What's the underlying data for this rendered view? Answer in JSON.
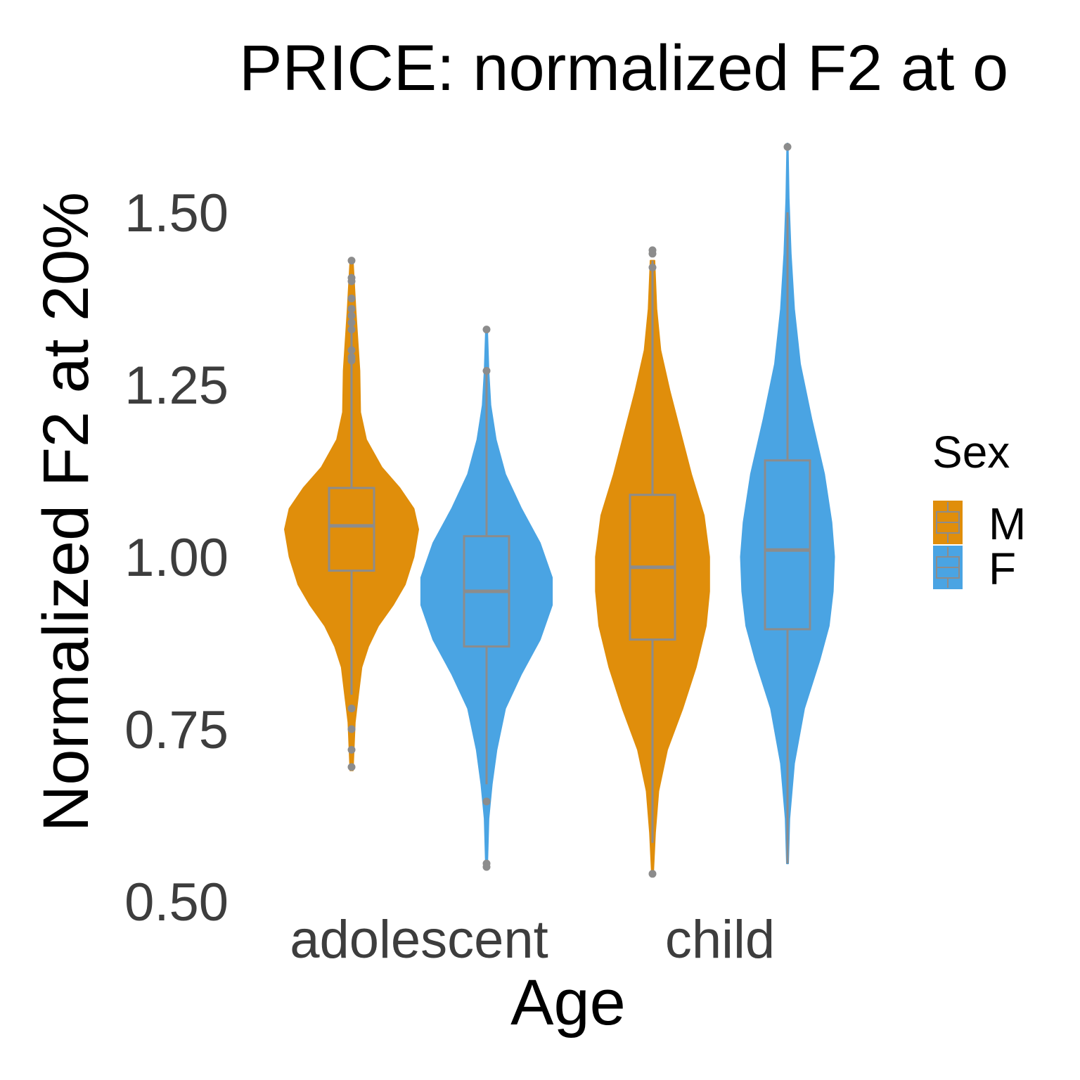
{
  "chart_data": {
    "type": "violin",
    "title": "PRICE: normalized F2 at o",
    "xlabel": "Age",
    "ylabel": "Normalized F2 at 20%",
    "categories": [
      "adolescent",
      "child"
    ],
    "ylim": [
      0.5,
      1.6
    ],
    "yticks": [
      "0.50",
      "0.75",
      "1.00",
      "1.25",
      "1.50"
    ],
    "grid": false,
    "legend": {
      "title": "Sex",
      "position": "right",
      "entries": [
        {
          "label": "M",
          "color": "#E08E0B"
        },
        {
          "label": "F",
          "color": "#4AA4E3"
        }
      ]
    },
    "box_color": "#8C8C8C",
    "groups": [
      {
        "category": "adolescent",
        "sex": "M",
        "color": "#E08E0B",
        "q1": 0.98,
        "median": 1.045,
        "q3": 1.1,
        "whisker_low": 0.8,
        "whisker_high": 1.35,
        "outliers": [
          1.43,
          1.405,
          1.4,
          1.375,
          1.36,
          1.35,
          1.34,
          1.33,
          1.3,
          1.29,
          1.285,
          0.78,
          0.75,
          0.72,
          0.695
        ],
        "density": [
          [
            0.69,
            0.02
          ],
          [
            0.76,
            0.05
          ],
          [
            0.8,
            0.1
          ],
          [
            0.84,
            0.15
          ],
          [
            0.87,
            0.25
          ],
          [
            0.9,
            0.4
          ],
          [
            0.93,
            0.62
          ],
          [
            0.96,
            0.8
          ],
          [
            1.0,
            0.93
          ],
          [
            1.04,
            1.0
          ],
          [
            1.07,
            0.93
          ],
          [
            1.1,
            0.72
          ],
          [
            1.13,
            0.45
          ],
          [
            1.17,
            0.22
          ],
          [
            1.21,
            0.13
          ],
          [
            1.27,
            0.12
          ],
          [
            1.3,
            0.1
          ],
          [
            1.36,
            0.06
          ],
          [
            1.43,
            0.02
          ]
        ]
      },
      {
        "category": "adolescent",
        "sex": "F",
        "color": "#4AA4E3",
        "q1": 0.87,
        "median": 0.95,
        "q3": 1.03,
        "whisker_low": 0.67,
        "whisker_high": 1.27,
        "outliers": [
          1.33,
          1.27,
          0.645,
          0.555,
          0.55
        ],
        "density": [
          [
            0.55,
            0.01
          ],
          [
            0.62,
            0.03
          ],
          [
            0.67,
            0.08
          ],
          [
            0.72,
            0.15
          ],
          [
            0.78,
            0.28
          ],
          [
            0.83,
            0.52
          ],
          [
            0.88,
            0.8
          ],
          [
            0.93,
            0.98
          ],
          [
            0.97,
            0.98
          ],
          [
            1.02,
            0.8
          ],
          [
            1.07,
            0.52
          ],
          [
            1.12,
            0.28
          ],
          [
            1.17,
            0.14
          ],
          [
            1.22,
            0.06
          ],
          [
            1.27,
            0.03
          ],
          [
            1.33,
            0.01
          ]
        ]
      },
      {
        "category": "child",
        "sex": "M",
        "color": "#E08E0B",
        "q1": 0.88,
        "median": 0.985,
        "q3": 1.09,
        "whisker_low": 0.585,
        "whisker_high": 1.43,
        "outliers": [
          1.445,
          1.44,
          1.42,
          0.54
        ],
        "density": [
          [
            0.54,
            0.01
          ],
          [
            0.6,
            0.04
          ],
          [
            0.66,
            0.09
          ],
          [
            0.72,
            0.22
          ],
          [
            0.78,
            0.45
          ],
          [
            0.84,
            0.65
          ],
          [
            0.9,
            0.8
          ],
          [
            0.95,
            0.85
          ],
          [
            1.0,
            0.85
          ],
          [
            1.06,
            0.77
          ],
          [
            1.12,
            0.58
          ],
          [
            1.18,
            0.42
          ],
          [
            1.24,
            0.26
          ],
          [
            1.3,
            0.12
          ],
          [
            1.36,
            0.06
          ],
          [
            1.43,
            0.03
          ]
        ]
      },
      {
        "category": "child",
        "sex": "F",
        "color": "#4AA4E3",
        "q1": 0.895,
        "median": 1.01,
        "q3": 1.14,
        "whisker_low": 0.555,
        "whisker_high": 1.5,
        "outliers": [
          1.595
        ],
        "density": [
          [
            0.555,
            0.01
          ],
          [
            0.62,
            0.03
          ],
          [
            0.7,
            0.1
          ],
          [
            0.78,
            0.25
          ],
          [
            0.85,
            0.48
          ],
          [
            0.9,
            0.62
          ],
          [
            0.95,
            0.68
          ],
          [
            1.0,
            0.7
          ],
          [
            1.05,
            0.66
          ],
          [
            1.12,
            0.55
          ],
          [
            1.2,
            0.36
          ],
          [
            1.28,
            0.19
          ],
          [
            1.36,
            0.1
          ],
          [
            1.44,
            0.05
          ],
          [
            1.52,
            0.02
          ],
          [
            1.6,
            0.005
          ]
        ]
      }
    ]
  }
}
